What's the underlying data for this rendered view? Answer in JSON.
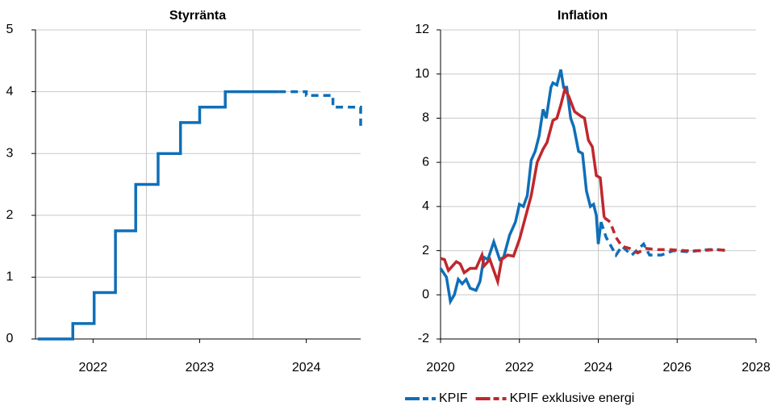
{
  "chart_data": [
    {
      "type": "line",
      "title": "Styrränta",
      "step": true,
      "xlim": [
        2021.96,
        2025.01
      ],
      "ylim": [
        0,
        5
      ],
      "xticks": [
        {
          "value": 2022.5,
          "label": "2022"
        },
        {
          "value": 2023.5,
          "label": "2023"
        },
        {
          "value": 2024.5,
          "label": "2024"
        }
      ],
      "xgrid": [
        2023,
        2024
      ],
      "yticks": [
        0,
        1,
        2,
        3,
        4,
        5
      ],
      "grid": true,
      "series": [
        {
          "color": "#0f6fb8",
          "segments": [
            {
              "style": "solid",
              "x": [
                2021.98,
                2022.31,
                2022.51,
                2022.71,
                2022.9,
                2023.11,
                2023.32,
                2023.5,
                2023.74,
                2024.24
              ],
              "values": [
                0,
                0.25,
                0.75,
                1.75,
                2.5,
                3,
                3.5,
                3.75,
                4,
                4
              ]
            },
            {
              "style": "dashed",
              "x": [
                2024.24,
                2024.5,
                2024.75,
                2025.01
              ],
              "values": [
                4,
                3.94,
                3.75,
                3.43
              ]
            }
          ]
        }
      ]
    },
    {
      "type": "line",
      "title": "Inflation",
      "xlim": [
        2020,
        2028
      ],
      "ylim": [
        -2,
        12
      ],
      "xticks": [
        2020,
        2022,
        2024,
        2026,
        2028
      ],
      "xgrid": [
        2022,
        2024,
        2026
      ],
      "yticks": [
        -2,
        0,
        2,
        4,
        6,
        8,
        10,
        12
      ],
      "grid": true,
      "series": [
        {
          "name": "KPIF",
          "color": "#0f6fb8",
          "segments": [
            {
              "style": "solid",
              "x": [
                2020.0,
                2020.15,
                2020.25,
                2020.35,
                2020.45,
                2020.55,
                2020.65,
                2020.75,
                2020.9,
                2021.0,
                2021.1,
                2021.2,
                2021.35,
                2021.5,
                2021.6,
                2021.75,
                2021.9,
                2022.0,
                2022.1,
                2022.2,
                2022.3,
                2022.4,
                2022.5,
                2022.6,
                2022.68,
                2022.8,
                2022.85,
                2022.95,
                2023.05,
                2023.12,
                2023.2,
                2023.3,
                2023.38,
                2023.5,
                2023.6,
                2023.7,
                2023.8,
                2023.88,
                2023.95,
                2024.0,
                2024.07
              ],
              "values": [
                1.2,
                0.8,
                -0.3,
                0.0,
                0.7,
                0.5,
                0.7,
                0.3,
                0.2,
                0.6,
                1.7,
                1.6,
                2.4,
                1.6,
                1.7,
                2.7,
                3.3,
                4.1,
                4.0,
                4.5,
                6.1,
                6.5,
                7.2,
                8.4,
                8.0,
                9.4,
                9.6,
                9.5,
                10.2,
                9.4,
                9.4,
                8.0,
                7.6,
                6.5,
                6.4,
                4.7,
                4.0,
                4.1,
                3.6,
                2.3,
                3.3
              ]
            },
            {
              "style": "dashed",
              "x": [
                2024.07,
                2024.2,
                2024.45,
                2024.6,
                2024.85,
                2025.15,
                2025.3,
                2025.6,
                2025.9,
                2026.3,
                2026.8,
                2027.0,
                2027.3
              ],
              "values": [
                3.3,
                2.6,
                1.8,
                2.2,
                1.8,
                2.3,
                1.8,
                1.8,
                2.0,
                1.95,
                2.05,
                2.05,
                2.0
              ]
            }
          ]
        },
        {
          "name": "KPIF exklusive energi",
          "color": "#c0272d",
          "segments": [
            {
              "style": "solid",
              "x": [
                2020.0,
                2020.1,
                2020.2,
                2020.3,
                2020.4,
                2020.5,
                2020.6,
                2020.75,
                2020.9,
                2021.05,
                2021.1,
                2021.25,
                2021.45,
                2021.55,
                2021.7,
                2021.85,
                2022.0,
                2022.15,
                2022.3,
                2022.45,
                2022.6,
                2022.7,
                2022.85,
                2022.95,
                2023.05,
                2023.15,
                2023.25,
                2023.4,
                2023.55,
                2023.65,
                2023.75,
                2023.85,
                2023.95,
                2024.05,
                2024.15
              ],
              "values": [
                1.65,
                1.6,
                1.1,
                1.3,
                1.5,
                1.4,
                1.0,
                1.2,
                1.2,
                1.8,
                1.3,
                1.6,
                0.6,
                1.6,
                1.8,
                1.75,
                2.5,
                3.5,
                4.5,
                6.0,
                6.6,
                6.9,
                7.9,
                8.0,
                8.6,
                9.3,
                9.0,
                8.3,
                8.1,
                8.0,
                7.0,
                6.7,
                5.4,
                5.3,
                3.5
              ]
            },
            {
              "style": "dashed",
              "x": [
                2024.15,
                2024.3,
                2024.45,
                2024.6,
                2024.8,
                2025.0,
                2025.2,
                2025.5,
                2025.8,
                2026.2,
                2026.6,
                2027.0,
                2027.3
              ],
              "values": [
                3.5,
                3.3,
                2.6,
                2.2,
                2.1,
                1.9,
                2.1,
                2.05,
                2.05,
                2.0,
                2.0,
                2.05,
                2.0
              ]
            }
          ]
        }
      ]
    }
  ]
}
